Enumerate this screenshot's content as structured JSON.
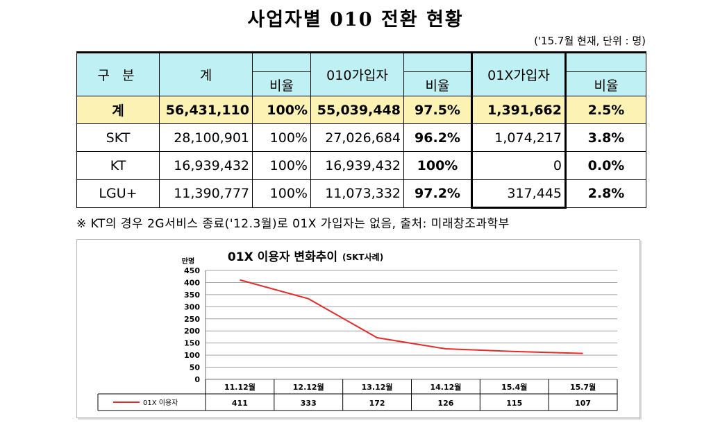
{
  "title": "사업자별 010 전환 현황",
  "unit_note": "('15.7월 현재, 단위 : 명)",
  "table": {
    "headers": {
      "category": "구 분",
      "total": "계",
      "ratio": "비율",
      "sub010": "010가입자",
      "sub01x": "01X가입자"
    },
    "rows": [
      {
        "name": "계",
        "total": "56,431,110",
        "ratio_total": "100%",
        "sub010": "55,039,448",
        "ratio010": "97.5%",
        "sub01x": "1,391,662",
        "ratio01x": "2.5%"
      },
      {
        "name": "SKT",
        "total": "28,100,901",
        "ratio_total": "100%",
        "sub010": "27,026,684",
        "ratio010": "96.2%",
        "sub01x": "1,074,217",
        "ratio01x": "3.8%"
      },
      {
        "name": "KT",
        "total": "16,939,432",
        "ratio_total": "100%",
        "sub010": "16,939,432",
        "ratio010": "100%",
        "sub01x": "0",
        "ratio01x": "0.0%"
      },
      {
        "name": "LGU+",
        "total": "11,390,777",
        "ratio_total": "100%",
        "sub010": "11,073,332",
        "ratio010": "97.2%",
        "sub01x": "317,445",
        "ratio01x": "2.8%"
      }
    ]
  },
  "footnote": "※ KT의 경우 2G서비스 종료('12.3월)로 01X 가입자는 없음, 출처: 미래창조과학부",
  "chart_data": {
    "type": "line",
    "title": "01X 이용자 변화추이",
    "subtitle": "(SKT사례)",
    "ylabel": "만명",
    "xlabel": "",
    "categories": [
      "11.12월",
      "12.12월",
      "13.12월",
      "14.12월",
      "15.4월",
      "15.7월"
    ],
    "series": [
      {
        "name": "01X 이용자",
        "values": [
          411,
          333,
          172,
          126,
          115,
          107
        ]
      }
    ],
    "ylim": [
      0,
      450
    ],
    "yticks": [
      0,
      50,
      100,
      150,
      200,
      250,
      300,
      350,
      400,
      450
    ],
    "grid": true,
    "legend": "data-table-bottom",
    "line_color": "#e32b2b"
  }
}
